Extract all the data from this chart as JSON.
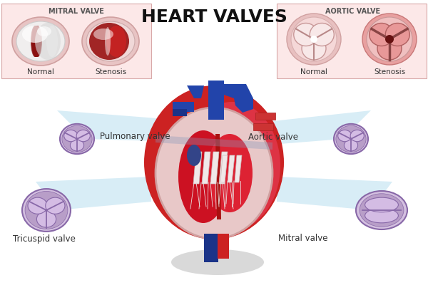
{
  "title": "HEART VALVES",
  "title_fontsize": 18,
  "title_fontweight": "bold",
  "bg_color": "#ffffff",
  "mitral_valve_label": "MITRAL VALVE",
  "aortic_valve_label": "AORTIC VALVE",
  "normal_label": "Normal",
  "stenosis_label": "Stenosis",
  "pulmonary_label": "Pulmonary valve",
  "aortic_label": "Aortic valve",
  "tricuspid_label": "Tricuspid valve",
  "mitral_label": "Mitral valve",
  "heart_red": "#cc2222",
  "heart_bright_red": "#dd3333",
  "heart_dark_red": "#aa1111",
  "heart_blue": "#2244aa",
  "heart_dark_blue": "#1a3388",
  "heart_purple_blue": "#334499",
  "light_blue_band": "#b8dff0",
  "valve_purple": "#b89ec8",
  "valve_purple_dark": "#9878b8",
  "valve_light": "#d4bce4",
  "box_bg": "#fce8e8",
  "gray_shadow": "#b8b8b8",
  "pink_inner": "#f5d8d8",
  "white": "#ffffff",
  "chordae_color": "#f0e8e8",
  "wall_color": "#e8c8c8"
}
